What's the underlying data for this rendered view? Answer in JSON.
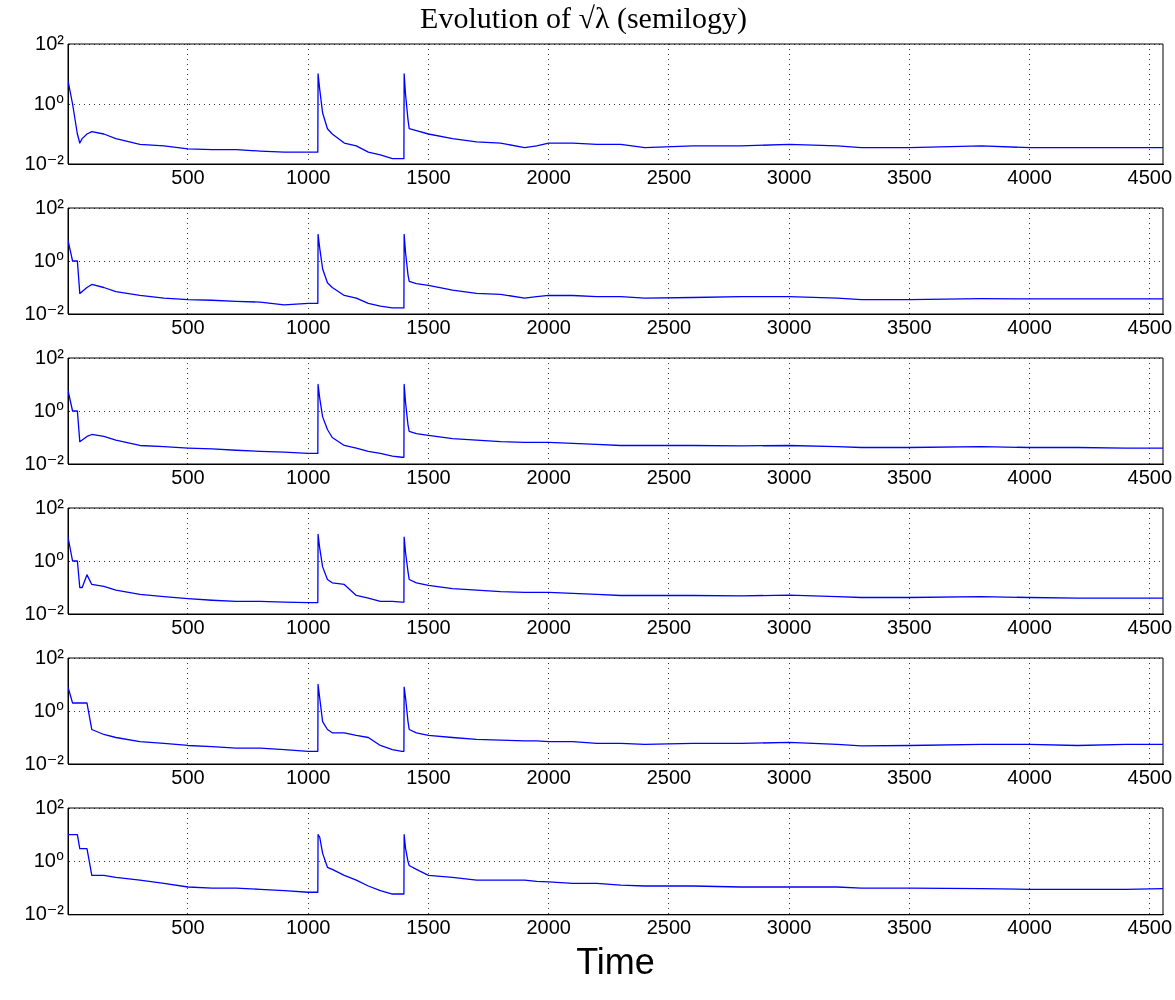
{
  "chart_data": [
    {
      "type": "line",
      "title": "Evolution of √λ (semilogy)",
      "log": "y",
      "grid": true,
      "xlim": [
        1,
        4555
      ],
      "xticks": [
        500,
        1000,
        1500,
        2000,
        2500,
        3000,
        3500,
        4000,
        4500
      ],
      "ylim": [
        0.01,
        100
      ],
      "yticks": [
        {
          "value": 0.01,
          "label": "10⁻²"
        },
        {
          "value": 1,
          "label": "10⁰"
        },
        {
          "value": 100,
          "label": "10²"
        }
      ],
      "x": [
        1,
        20,
        40,
        50,
        60,
        80,
        100,
        150,
        200,
        300,
        400,
        500,
        600,
        700,
        800,
        900,
        1000,
        1040,
        1041,
        1048,
        1060,
        1080,
        1100,
        1150,
        1200,
        1250,
        1300,
        1350,
        1390,
        1398,
        1399,
        1405,
        1415,
        1420,
        1450,
        1500,
        1600,
        1700,
        1800,
        1900,
        1950,
        2000,
        2100,
        2200,
        2300,
        2400,
        2600,
        2800,
        3000,
        3200,
        3300,
        3500,
        3800,
        4000,
        4200,
        4400,
        4555
      ],
      "series": [
        {
          "color": "#0000ff",
          "values": [
            6,
            1,
            0.1,
            0.05,
            0.07,
            0.1,
            0.12,
            0.1,
            0.07,
            0.045,
            0.04,
            0.032,
            0.03,
            0.03,
            0.027,
            0.025,
            0.025,
            0.025,
            10,
            3,
            0.5,
            0.15,
            0.1,
            0.05,
            0.04,
            0.025,
            0.02,
            0.015,
            0.015,
            0.015,
            10,
            2,
            0.3,
            0.15,
            0.13,
            0.1,
            0.07,
            0.055,
            0.05,
            0.035,
            0.04,
            0.05,
            0.05,
            0.045,
            0.045,
            0.035,
            0.04,
            0.04,
            0.045,
            0.04,
            0.035,
            0.035,
            0.04,
            0.035,
            0.035,
            0.035,
            0.035
          ]
        }
      ]
    },
    {
      "type": "line",
      "log": "y",
      "grid": true,
      "xlim": [
        1,
        4555
      ],
      "xticks": [
        500,
        1000,
        1500,
        2000,
        2500,
        3000,
        3500,
        4000,
        4500
      ],
      "ylim": [
        0.01,
        100
      ],
      "yticks": [
        {
          "value": 0.01,
          "label": "10⁻²"
        },
        {
          "value": 1,
          "label": "10⁰"
        },
        {
          "value": 100,
          "label": "10²"
        }
      ],
      "x": [
        1,
        20,
        40,
        50,
        60,
        80,
        100,
        150,
        200,
        300,
        400,
        500,
        600,
        700,
        800,
        900,
        1000,
        1040,
        1041,
        1048,
        1060,
        1080,
        1100,
        1150,
        1200,
        1250,
        1300,
        1350,
        1390,
        1398,
        1399,
        1405,
        1415,
        1420,
        1450,
        1500,
        1600,
        1700,
        1800,
        1900,
        1950,
        2000,
        2100,
        2200,
        2300,
        2400,
        2600,
        2800,
        3000,
        3200,
        3300,
        3500,
        3800,
        4000,
        4200,
        4400,
        4555
      ],
      "series": [
        {
          "color": "#0000ff",
          "values": [
            6,
            1,
            1,
            0.06,
            0.07,
            0.1,
            0.13,
            0.1,
            0.07,
            0.05,
            0.04,
            0.035,
            0.033,
            0.03,
            0.028,
            0.022,
            0.025,
            0.025,
            10,
            3,
            0.5,
            0.15,
            0.1,
            0.05,
            0.04,
            0.025,
            0.02,
            0.017,
            0.017,
            0.017,
            10,
            2,
            0.3,
            0.17,
            0.14,
            0.12,
            0.08,
            0.06,
            0.055,
            0.04,
            0.045,
            0.05,
            0.05,
            0.045,
            0.045,
            0.04,
            0.042,
            0.045,
            0.045,
            0.04,
            0.035,
            0.035,
            0.038,
            0.037,
            0.037,
            0.037,
            0.037
          ]
        }
      ]
    },
    {
      "type": "line",
      "log": "y",
      "grid": true,
      "xlim": [
        1,
        4555
      ],
      "xticks": [
        500,
        1000,
        1500,
        2000,
        2500,
        3000,
        3500,
        4000,
        4500
      ],
      "ylim": [
        0.01,
        100
      ],
      "yticks": [
        {
          "value": 0.01,
          "label": "10⁻²"
        },
        {
          "value": 1,
          "label": "10⁰"
        },
        {
          "value": 100,
          "label": "10²"
        }
      ],
      "x": [
        1,
        20,
        40,
        50,
        60,
        80,
        100,
        150,
        200,
        300,
        400,
        500,
        600,
        700,
        800,
        900,
        1000,
        1040,
        1041,
        1048,
        1060,
        1080,
        1100,
        1150,
        1200,
        1250,
        1300,
        1350,
        1390,
        1398,
        1399,
        1405,
        1415,
        1420,
        1450,
        1500,
        1600,
        1700,
        1800,
        1900,
        1950,
        2000,
        2100,
        2200,
        2300,
        2400,
        2600,
        2800,
        3000,
        3200,
        3300,
        3500,
        3800,
        4000,
        4200,
        4400,
        4555
      ],
      "series": [
        {
          "color": "#0000ff",
          "values": [
            6,
            1,
            1,
            0.07,
            0.08,
            0.11,
            0.13,
            0.11,
            0.08,
            0.05,
            0.045,
            0.04,
            0.037,
            0.033,
            0.03,
            0.028,
            0.025,
            0.025,
            10,
            3,
            0.6,
            0.2,
            0.1,
            0.05,
            0.04,
            0.03,
            0.025,
            0.02,
            0.018,
            0.018,
            10,
            2,
            0.3,
            0.17,
            0.14,
            0.12,
            0.09,
            0.08,
            0.07,
            0.065,
            0.065,
            0.065,
            0.06,
            0.055,
            0.05,
            0.05,
            0.05,
            0.048,
            0.05,
            0.045,
            0.042,
            0.042,
            0.045,
            0.042,
            0.042,
            0.04,
            0.04
          ]
        }
      ]
    },
    {
      "type": "line",
      "log": "y",
      "grid": true,
      "xlim": [
        1,
        4555
      ],
      "xticks": [
        500,
        1000,
        1500,
        2000,
        2500,
        3000,
        3500,
        4000,
        4500
      ],
      "ylim": [
        0.01,
        100
      ],
      "yticks": [
        {
          "value": 0.01,
          "label": "10⁻²"
        },
        {
          "value": 1,
          "label": "10⁰"
        },
        {
          "value": 100,
          "label": "10²"
        }
      ],
      "x": [
        1,
        20,
        40,
        50,
        60,
        80,
        100,
        150,
        200,
        300,
        400,
        500,
        600,
        700,
        800,
        900,
        1000,
        1040,
        1041,
        1048,
        1060,
        1080,
        1100,
        1150,
        1200,
        1250,
        1300,
        1350,
        1390,
        1398,
        1399,
        1405,
        1415,
        1420,
        1450,
        1500,
        1600,
        1700,
        1800,
        1900,
        1950,
        2000,
        2100,
        2200,
        2300,
        2400,
        2600,
        2800,
        3000,
        3200,
        3300,
        3500,
        3800,
        4000,
        4200,
        4400,
        4555
      ],
      "series": [
        {
          "color": "#0000ff",
          "values": [
            8,
            1,
            1,
            0.1,
            0.1,
            0.3,
            0.13,
            0.11,
            0.08,
            0.055,
            0.045,
            0.038,
            0.033,
            0.03,
            0.03,
            0.028,
            0.027,
            0.027,
            10,
            3,
            0.6,
            0.2,
            0.15,
            0.13,
            0.05,
            0.04,
            0.03,
            0.03,
            0.028,
            0.028,
            8,
            2,
            0.4,
            0.2,
            0.15,
            0.12,
            0.09,
            0.08,
            0.07,
            0.065,
            0.065,
            0.065,
            0.06,
            0.055,
            0.05,
            0.05,
            0.05,
            0.048,
            0.052,
            0.045,
            0.042,
            0.042,
            0.045,
            0.042,
            0.04,
            0.04,
            0.04
          ]
        }
      ]
    },
    {
      "type": "line",
      "log": "y",
      "grid": true,
      "xlim": [
        1,
        4555
      ],
      "xticks": [
        500,
        1000,
        1500,
        2000,
        2500,
        3000,
        3500,
        4000,
        4500
      ],
      "ylim": [
        0.01,
        100
      ],
      "yticks": [
        {
          "value": 0.01,
          "label": "10⁻²"
        },
        {
          "value": 1,
          "label": "10⁰"
        },
        {
          "value": 100,
          "label": "10²"
        }
      ],
      "x": [
        1,
        20,
        40,
        50,
        60,
        80,
        100,
        150,
        200,
        300,
        400,
        500,
        600,
        700,
        800,
        900,
        1000,
        1040,
        1041,
        1048,
        1060,
        1080,
        1100,
        1150,
        1200,
        1250,
        1300,
        1350,
        1390,
        1398,
        1399,
        1405,
        1415,
        1420,
        1450,
        1500,
        1600,
        1700,
        1800,
        1900,
        1950,
        2000,
        2100,
        2200,
        2300,
        2400,
        2600,
        2800,
        3000,
        3200,
        3300,
        3500,
        3800,
        4000,
        4200,
        4400,
        4555
      ],
      "series": [
        {
          "color": "#0000ff",
          "values": [
            8,
            2,
            2,
            2,
            2,
            2,
            0.2,
            0.13,
            0.1,
            0.07,
            0.06,
            0.05,
            0.045,
            0.04,
            0.04,
            0.035,
            0.03,
            0.03,
            10,
            3,
            0.4,
            0.2,
            0.15,
            0.15,
            0.12,
            0.1,
            0.05,
            0.035,
            0.03,
            0.03,
            8,
            3,
            0.4,
            0.2,
            0.15,
            0.12,
            0.1,
            0.085,
            0.08,
            0.075,
            0.075,
            0.07,
            0.07,
            0.06,
            0.06,
            0.055,
            0.06,
            0.06,
            0.065,
            0.055,
            0.048,
            0.05,
            0.055,
            0.055,
            0.05,
            0.055,
            0.055
          ]
        }
      ]
    },
    {
      "type": "line",
      "xlabel": "Time",
      "log": "y",
      "grid": true,
      "xlim": [
        1,
        4555
      ],
      "xticks": [
        500,
        1000,
        1500,
        2000,
        2500,
        3000,
        3500,
        4000,
        4500
      ],
      "ylim": [
        0.01,
        100
      ],
      "yticks": [
        {
          "value": 0.01,
          "label": "10⁻²"
        },
        {
          "value": 1,
          "label": "10⁰"
        },
        {
          "value": 100,
          "label": "10²"
        }
      ],
      "x": [
        1,
        20,
        40,
        50,
        60,
        80,
        100,
        150,
        200,
        300,
        400,
        500,
        600,
        700,
        800,
        900,
        1000,
        1040,
        1041,
        1048,
        1060,
        1080,
        1100,
        1150,
        1200,
        1250,
        1300,
        1350,
        1390,
        1398,
        1399,
        1405,
        1415,
        1420,
        1450,
        1500,
        1600,
        1700,
        1800,
        1900,
        1950,
        2000,
        2100,
        2200,
        2300,
        2400,
        2600,
        2800,
        3000,
        3200,
        3300,
        3500,
        3800,
        4000,
        4200,
        4400,
        4555
      ],
      "series": [
        {
          "color": "#0000ff",
          "values": [
            10,
            10,
            10,
            3,
            3,
            3,
            0.3,
            0.3,
            0.25,
            0.2,
            0.15,
            0.11,
            0.1,
            0.1,
            0.09,
            0.08,
            0.07,
            0.07,
            10,
            8,
            2,
            0.6,
            0.5,
            0.3,
            0.2,
            0.12,
            0.08,
            0.06,
            0.06,
            0.06,
            10,
            3,
            1,
            0.7,
            0.5,
            0.3,
            0.25,
            0.2,
            0.2,
            0.2,
            0.18,
            0.17,
            0.15,
            0.15,
            0.13,
            0.12,
            0.12,
            0.11,
            0.11,
            0.11,
            0.1,
            0.1,
            0.095,
            0.09,
            0.09,
            0.09,
            0.095
          ]
        }
      ]
    }
  ]
}
